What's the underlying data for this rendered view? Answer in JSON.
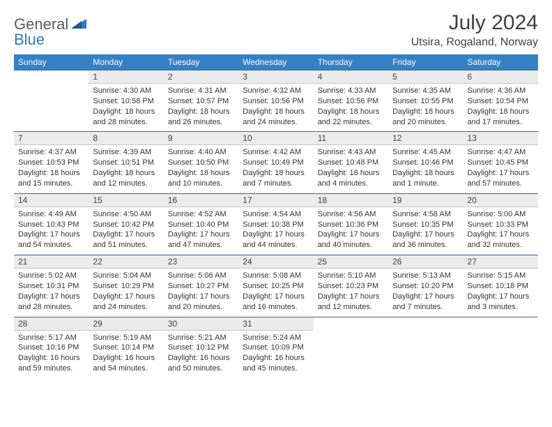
{
  "brand": {
    "general": "General",
    "blue": "Blue"
  },
  "title": "July 2024",
  "location": "Utsira, Rogaland, Norway",
  "colors": {
    "header_bg": "#3481c6",
    "header_text": "#ffffff",
    "daynum_bg": "#ebebeb",
    "border_top": "#2f6aa0",
    "text": "#333333",
    "title_text": "#404040",
    "brand_gray": "#5a5a5a",
    "brand_blue": "#2f78bd"
  },
  "weekdays": [
    "Sunday",
    "Monday",
    "Tuesday",
    "Wednesday",
    "Thursday",
    "Friday",
    "Saturday"
  ],
  "weeks": [
    [
      null,
      {
        "n": "1",
        "sunrise": "Sunrise: 4:30 AM",
        "sunset": "Sunset: 10:58 PM",
        "daylight": "Daylight: 18 hours and 28 minutes."
      },
      {
        "n": "2",
        "sunrise": "Sunrise: 4:31 AM",
        "sunset": "Sunset: 10:57 PM",
        "daylight": "Daylight: 18 hours and 26 minutes."
      },
      {
        "n": "3",
        "sunrise": "Sunrise: 4:32 AM",
        "sunset": "Sunset: 10:56 PM",
        "daylight": "Daylight: 18 hours and 24 minutes."
      },
      {
        "n": "4",
        "sunrise": "Sunrise: 4:33 AM",
        "sunset": "Sunset: 10:56 PM",
        "daylight": "Daylight: 18 hours and 22 minutes."
      },
      {
        "n": "5",
        "sunrise": "Sunrise: 4:35 AM",
        "sunset": "Sunset: 10:55 PM",
        "daylight": "Daylight: 18 hours and 20 minutes."
      },
      {
        "n": "6",
        "sunrise": "Sunrise: 4:36 AM",
        "sunset": "Sunset: 10:54 PM",
        "daylight": "Daylight: 18 hours and 17 minutes."
      }
    ],
    [
      {
        "n": "7",
        "sunrise": "Sunrise: 4:37 AM",
        "sunset": "Sunset: 10:53 PM",
        "daylight": "Daylight: 18 hours and 15 minutes."
      },
      {
        "n": "8",
        "sunrise": "Sunrise: 4:39 AM",
        "sunset": "Sunset: 10:51 PM",
        "daylight": "Daylight: 18 hours and 12 minutes."
      },
      {
        "n": "9",
        "sunrise": "Sunrise: 4:40 AM",
        "sunset": "Sunset: 10:50 PM",
        "daylight": "Daylight: 18 hours and 10 minutes."
      },
      {
        "n": "10",
        "sunrise": "Sunrise: 4:42 AM",
        "sunset": "Sunset: 10:49 PM",
        "daylight": "Daylight: 18 hours and 7 minutes."
      },
      {
        "n": "11",
        "sunrise": "Sunrise: 4:43 AM",
        "sunset": "Sunset: 10:48 PM",
        "daylight": "Daylight: 18 hours and 4 minutes."
      },
      {
        "n": "12",
        "sunrise": "Sunrise: 4:45 AM",
        "sunset": "Sunset: 10:46 PM",
        "daylight": "Daylight: 18 hours and 1 minute."
      },
      {
        "n": "13",
        "sunrise": "Sunrise: 4:47 AM",
        "sunset": "Sunset: 10:45 PM",
        "daylight": "Daylight: 17 hours and 57 minutes."
      }
    ],
    [
      {
        "n": "14",
        "sunrise": "Sunrise: 4:49 AM",
        "sunset": "Sunset: 10:43 PM",
        "daylight": "Daylight: 17 hours and 54 minutes."
      },
      {
        "n": "15",
        "sunrise": "Sunrise: 4:50 AM",
        "sunset": "Sunset: 10:42 PM",
        "daylight": "Daylight: 17 hours and 51 minutes."
      },
      {
        "n": "16",
        "sunrise": "Sunrise: 4:52 AM",
        "sunset": "Sunset: 10:40 PM",
        "daylight": "Daylight: 17 hours and 47 minutes."
      },
      {
        "n": "17",
        "sunrise": "Sunrise: 4:54 AM",
        "sunset": "Sunset: 10:38 PM",
        "daylight": "Daylight: 17 hours and 44 minutes."
      },
      {
        "n": "18",
        "sunrise": "Sunrise: 4:56 AM",
        "sunset": "Sunset: 10:36 PM",
        "daylight": "Daylight: 17 hours and 40 minutes."
      },
      {
        "n": "19",
        "sunrise": "Sunrise: 4:58 AM",
        "sunset": "Sunset: 10:35 PM",
        "daylight": "Daylight: 17 hours and 36 minutes."
      },
      {
        "n": "20",
        "sunrise": "Sunrise: 5:00 AM",
        "sunset": "Sunset: 10:33 PM",
        "daylight": "Daylight: 17 hours and 32 minutes."
      }
    ],
    [
      {
        "n": "21",
        "sunrise": "Sunrise: 5:02 AM",
        "sunset": "Sunset: 10:31 PM",
        "daylight": "Daylight: 17 hours and 28 minutes."
      },
      {
        "n": "22",
        "sunrise": "Sunrise: 5:04 AM",
        "sunset": "Sunset: 10:29 PM",
        "daylight": "Daylight: 17 hours and 24 minutes."
      },
      {
        "n": "23",
        "sunrise": "Sunrise: 5:06 AM",
        "sunset": "Sunset: 10:27 PM",
        "daylight": "Daylight: 17 hours and 20 minutes."
      },
      {
        "n": "24",
        "sunrise": "Sunrise: 5:08 AM",
        "sunset": "Sunset: 10:25 PM",
        "daylight": "Daylight: 17 hours and 16 minutes."
      },
      {
        "n": "25",
        "sunrise": "Sunrise: 5:10 AM",
        "sunset": "Sunset: 10:23 PM",
        "daylight": "Daylight: 17 hours and 12 minutes."
      },
      {
        "n": "26",
        "sunrise": "Sunrise: 5:13 AM",
        "sunset": "Sunset: 10:20 PM",
        "daylight": "Daylight: 17 hours and 7 minutes."
      },
      {
        "n": "27",
        "sunrise": "Sunrise: 5:15 AM",
        "sunset": "Sunset: 10:18 PM",
        "daylight": "Daylight: 17 hours and 3 minutes."
      }
    ],
    [
      {
        "n": "28",
        "sunrise": "Sunrise: 5:17 AM",
        "sunset": "Sunset: 10:16 PM",
        "daylight": "Daylight: 16 hours and 59 minutes."
      },
      {
        "n": "29",
        "sunrise": "Sunrise: 5:19 AM",
        "sunset": "Sunset: 10:14 PM",
        "daylight": "Daylight: 16 hours and 54 minutes."
      },
      {
        "n": "30",
        "sunrise": "Sunrise: 5:21 AM",
        "sunset": "Sunset: 10:12 PM",
        "daylight": "Daylight: 16 hours and 50 minutes."
      },
      {
        "n": "31",
        "sunrise": "Sunrise: 5:24 AM",
        "sunset": "Sunset: 10:09 PM",
        "daylight": "Daylight: 16 hours and 45 minutes."
      },
      null,
      null,
      null
    ]
  ]
}
